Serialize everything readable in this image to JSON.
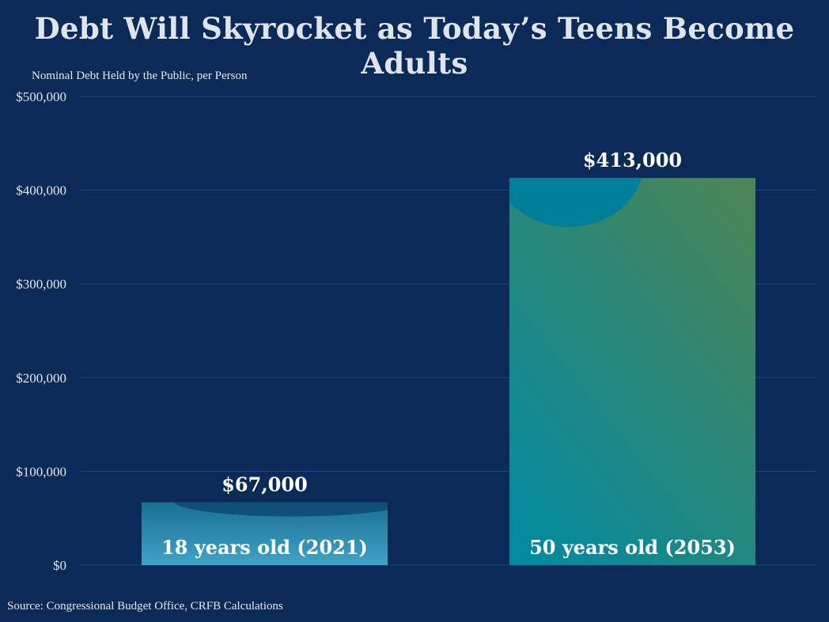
{
  "title": "Debt Will Skyrocket as Today’s Teens Become Adults",
  "source": "Source: Congressional Budget Office, CRFB Calculations",
  "colors": {
    "background": "#0b2a58",
    "gridline": "#1c4a86",
    "bar_low_top": "#1a6f93",
    "bar_low_bottom": "#3fa3c8",
    "bar_high_top": "#4a8557",
    "bar_high_bottom": "#028aa0"
  },
  "chart_data": {
    "type": "bar",
    "ylabel": "Nominal Debt Held by the Public, per Person",
    "ylim": [
      0,
      500000
    ],
    "yticks": [
      0,
      100000,
      200000,
      300000,
      400000,
      500000
    ],
    "ytick_labels": [
      "$0",
      "$100,000",
      "$200,000",
      "$300,000",
      "$400,000",
      "$500,000"
    ],
    "categories": [
      "18 years old (2021)",
      "50 years old (2053)"
    ],
    "values": [
      67000,
      413000
    ],
    "value_labels": [
      "$67,000",
      "$413,000"
    ],
    "grid": true,
    "legend": "none"
  }
}
